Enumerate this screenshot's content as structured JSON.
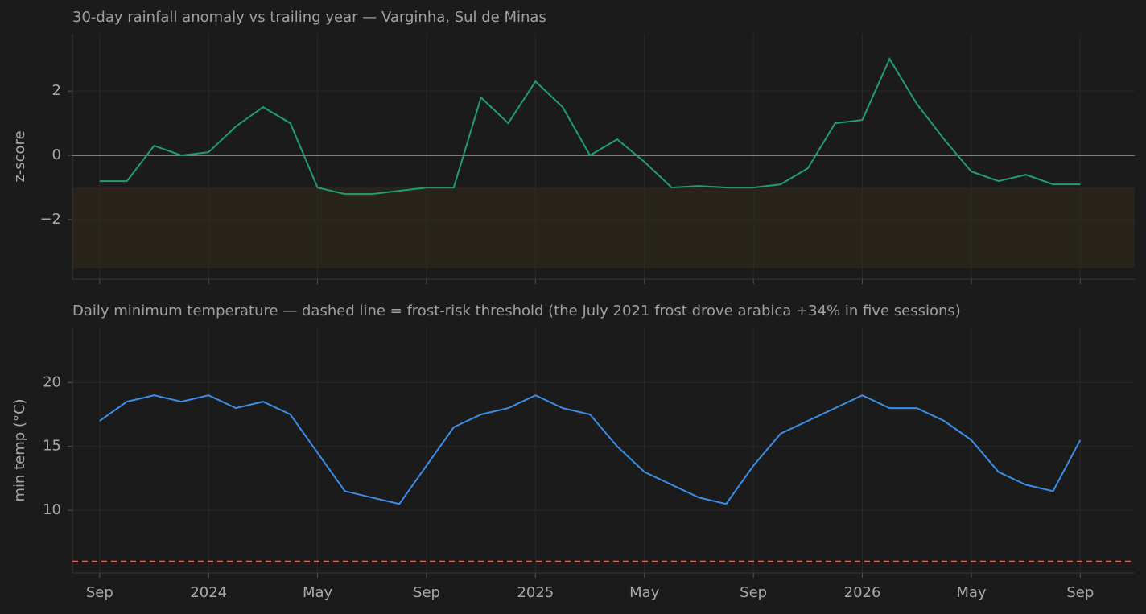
{
  "chart_data": [
    {
      "type": "line",
      "title": "30-day rainfall anomaly vs trailing year — Varginha, Sul de Minas",
      "y_label": "z-score",
      "x": [
        "2023-09",
        "2023-10",
        "2023-11",
        "2023-12",
        "2024-01",
        "2024-02",
        "2024-03",
        "2024-04",
        "2024-05",
        "2024-06",
        "2024-07",
        "2024-08",
        "2024-09",
        "2024-10",
        "2024-11",
        "2024-12",
        "2025-01",
        "2025-02",
        "2025-03",
        "2025-04",
        "2025-05",
        "2025-06",
        "2025-07",
        "2025-08",
        "2025-09",
        "2025-10",
        "2025-11",
        "2025-12",
        "2026-01",
        "2026-02",
        "2026-03",
        "2026-04",
        "2026-05",
        "2026-06",
        "2026-07",
        "2026-08",
        "2026-09"
      ],
      "series": [
        {
          "color": "#1f9e6e",
          "values": [
            -0.8,
            -0.8,
            0.3,
            0.0,
            0.1,
            0.9,
            1.5,
            1.0,
            -1.0,
            -1.2,
            -1.2,
            -1.1,
            -1.0,
            -1.0,
            1.8,
            1.0,
            2.3,
            1.5,
            0.0,
            0.5,
            -0.2,
            -1.0,
            -0.95,
            -1.0,
            -1.0,
            -0.9,
            -0.4,
            1.0,
            1.1,
            3.0,
            1.6,
            0.5,
            -0.5,
            -0.8,
            -0.6,
            -0.9,
            -0.9
          ]
        }
      ],
      "xlim": [
        "2023-08",
        "2026-11"
      ],
      "xticks": [
        "2023-09",
        "2024-01",
        "2024-05",
        "2024-09",
        "2025-01",
        "2025-05",
        "2025-09",
        "2026-01",
        "2026-05",
        "2026-09"
      ],
      "ylim": [
        -3.85,
        3.78
      ],
      "yticks": [
        {
          "value": -2,
          "label": "−2"
        },
        0,
        2
      ],
      "grid": true,
      "hline": {
        "value": 0,
        "color": "#8a8a8a",
        "dashed": false
      },
      "hspan": [
        -3.5,
        -1
      ],
      "hspan_color": "#29241a"
    },
    {
      "type": "line",
      "title": "Daily minimum temperature — dashed line = frost-risk threshold (the July 2021 frost drove arabica +34% in five sessions)",
      "y_label": "min temp (°C)",
      "x": [
        "2023-09",
        "2023-10",
        "2023-11",
        "2023-12",
        "2024-01",
        "2024-02",
        "2024-03",
        "2024-04",
        "2024-05",
        "2024-06",
        "2024-07",
        "2024-08",
        "2024-09",
        "2024-10",
        "2024-11",
        "2024-12",
        "2025-01",
        "2025-02",
        "2025-03",
        "2025-04",
        "2025-05",
        "2025-06",
        "2025-07",
        "2025-08",
        "2025-09",
        "2025-10",
        "2025-11",
        "2025-12",
        "2026-01",
        "2026-02",
        "2026-03",
        "2026-04",
        "2026-05",
        "2026-06",
        "2026-07",
        "2026-08",
        "2026-09"
      ],
      "series": [
        {
          "color": "#3b8ee8",
          "values": [
            17,
            18.5,
            19,
            18.5,
            19,
            18,
            18.5,
            17.5,
            14.5,
            11.5,
            11,
            10.5,
            13.5,
            16.5,
            17.5,
            18,
            19,
            18,
            17.5,
            15,
            13,
            12,
            11,
            10.5,
            13.5,
            16,
            17,
            18,
            19,
            18,
            18,
            17,
            15.5,
            13,
            12,
            11.5,
            15.5
          ]
        }
      ],
      "xlim": [
        "2023-08",
        "2026-11"
      ],
      "xticks": [
        {
          "value": "2023-09",
          "label": "Sep"
        },
        {
          "value": "2024-01",
          "label": "2024"
        },
        {
          "value": "2024-05",
          "label": "May"
        },
        {
          "value": "2024-09",
          "label": "Sep"
        },
        {
          "value": "2025-01",
          "label": "2025"
        },
        {
          "value": "2025-05",
          "label": "May"
        },
        {
          "value": "2025-09",
          "label": "Sep"
        },
        {
          "value": "2026-01",
          "label": "2026"
        },
        {
          "value": "2026-05",
          "label": "May"
        },
        {
          "value": "2026-09",
          "label": "Sep"
        }
      ],
      "ylim": [
        5.1,
        24.3
      ],
      "yticks": [
        10,
        15,
        20
      ],
      "grid": true,
      "hline": {
        "value": 6,
        "color": "#e0665a",
        "dashed": true
      }
    }
  ]
}
